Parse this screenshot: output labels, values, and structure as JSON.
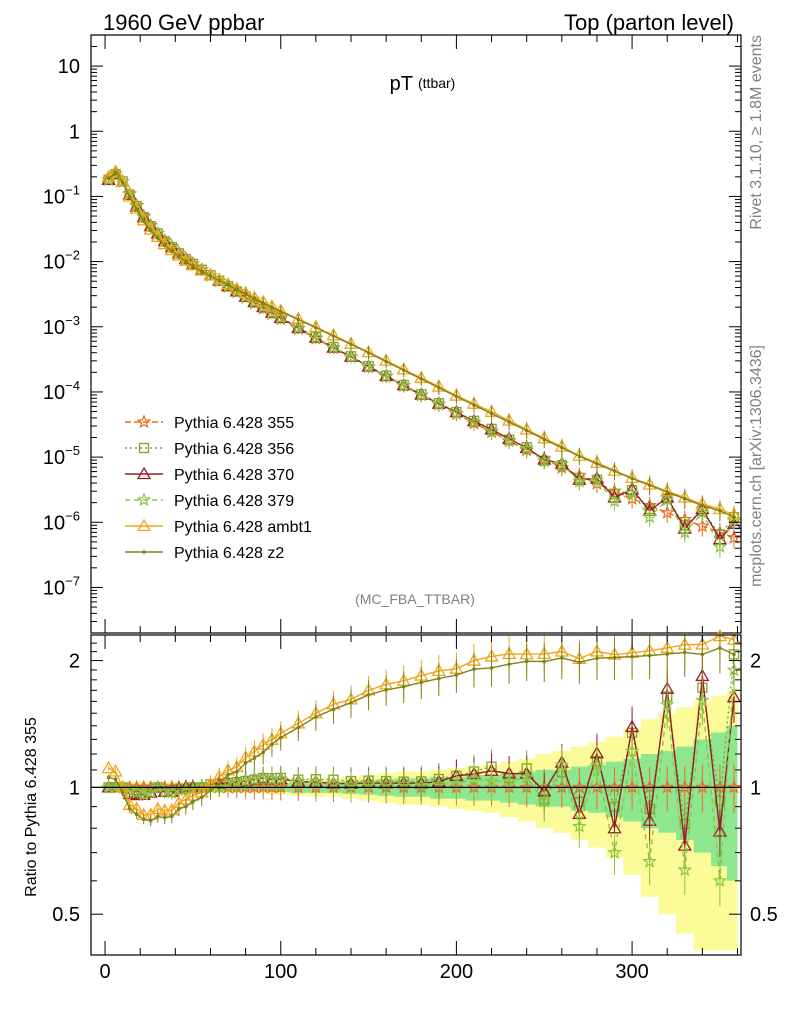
{
  "header": {
    "left": "1960 GeV ppbar",
    "right": "Top (parton level)"
  },
  "side_labels": {
    "rivet": "Rivet 3.1.10, ≥ 1.8M events",
    "mcplots": "mcplots.cern.ch [arXiv:1306.3436]"
  },
  "chart_data": {
    "type": "line",
    "title": "pT",
    "title_sub": "(ttbar)",
    "watermark": "(MC_FBA_TTBAR)",
    "xlabel": "",
    "ylabel": "",
    "xlim": [
      -8,
      362
    ],
    "ylim": [
      2e-08,
      30
    ],
    "yscale": "log",
    "x_ticks": [
      0,
      100,
      200,
      300
    ],
    "y_ticks": [
      {
        "v": 10,
        "b": "10",
        "e": ""
      },
      {
        "v": 1,
        "b": "1",
        "e": ""
      },
      {
        "v": 0.1,
        "b": "10",
        "e": "−1"
      },
      {
        "v": 0.01,
        "b": "10",
        "e": "−2"
      },
      {
        "v": 0.001,
        "b": "10",
        "e": "−3"
      },
      {
        "v": 0.0001,
        "b": "10",
        "e": "−4"
      },
      {
        "v": 1e-05,
        "b": "10",
        "e": "−5"
      },
      {
        "v": 1e-06,
        "b": "10",
        "e": "−6"
      },
      {
        "v": 1e-07,
        "b": "10",
        "e": "−7"
      }
    ],
    "x": [
      2,
      6,
      10,
      14,
      18,
      22,
      26,
      30,
      34,
      38,
      42,
      46,
      50,
      55,
      60,
      65,
      70,
      75,
      80,
      85,
      90,
      95,
      100,
      110,
      120,
      130,
      140,
      150,
      160,
      170,
      180,
      190,
      200,
      210,
      220,
      230,
      240,
      250,
      260,
      270,
      280,
      290,
      300,
      310,
      320,
      330,
      340,
      350,
      358
    ],
    "series": [
      {
        "name": "Pythia 6.428 355",
        "color": "#ee6a1f",
        "dash": "6,3",
        "marker": "star",
        "values": [
          0.18,
          0.22,
          0.17,
          0.11,
          0.073,
          0.05,
          0.036,
          0.027,
          0.021,
          0.017,
          0.0135,
          0.011,
          0.0092,
          0.0075,
          0.0061,
          0.005,
          0.0041,
          0.0034,
          0.0028,
          0.0023,
          0.0019,
          0.00158,
          0.00131,
          0.00093,
          0.00066,
          0.00047,
          0.00034,
          0.00024,
          0.000172,
          0.000124,
          8.9e-05,
          6.4e-05,
          4.6e-05,
          3.3e-05,
          2.42e-05,
          1.76e-05,
          1.28e-05,
          9.4e-06,
          6.9e-06,
          5.2e-06,
          3.9e-06,
          3e-06,
          2.3e-06,
          1.8e-06,
          1.4e-06,
          1.1e-06,
          8.7e-07,
          7e-07,
          5.8e-07
        ]
      },
      {
        "name": "Pythia 6.428 356",
        "color": "#7fa52a",
        "dash": "2,3",
        "marker": "square",
        "values": [
          0.18,
          0.22,
          0.17,
          0.107,
          0.071,
          0.048,
          0.035,
          0.027,
          0.0205,
          0.0166,
          0.0134,
          0.0109,
          0.0092,
          0.0075,
          0.0062,
          0.0051,
          0.0042,
          0.0035,
          0.0029,
          0.0024,
          0.002,
          0.00166,
          0.00138,
          0.00097,
          0.00069,
          0.00049,
          0.000352,
          0.000249,
          0.000178,
          0.000128,
          9.2e-05,
          6.7e-05,
          4.9e-05,
          3.6e-05,
          2.71e-05,
          1.85e-05,
          1.42e-05,
          8.8e-06,
          7.5e-06,
          4.8e-06,
          4.5e-06,
          2.7e-06,
          3.1e-06,
          1.6e-06,
          2.3e-06,
          9e-07,
          1.5e-06,
          6.5e-07,
          1.2e-06
        ]
      },
      {
        "name": "Pythia 6.428 370",
        "color": "#9a1a2a",
        "dash": "",
        "marker": "triangle",
        "values": [
          0.18,
          0.22,
          0.17,
          0.106,
          0.07,
          0.048,
          0.035,
          0.027,
          0.0205,
          0.0166,
          0.0134,
          0.011,
          0.0092,
          0.0075,
          0.0062,
          0.0051,
          0.0042,
          0.0035,
          0.0029,
          0.0024,
          0.002,
          0.00165,
          0.00137,
          0.00096,
          0.00068,
          0.00048,
          0.000347,
          0.000246,
          0.000176,
          0.000127,
          9.1e-05,
          6.6e-05,
          4.9e-05,
          3.55e-05,
          2.65e-05,
          1.9e-05,
          1.38e-05,
          9.2e-06,
          7.9e-06,
          4.5e-06,
          4.7e-06,
          2.4e-06,
          3.2e-06,
          1.5e-06,
          2.4e-06,
          8e-07,
          1.6e-06,
          5.5e-07,
          9.5e-07
        ]
      },
      {
        "name": "Pythia 6.428 379",
        "color": "#8cc63f",
        "dash": "5,4",
        "marker": "star",
        "values": [
          0.18,
          0.22,
          0.17,
          0.108,
          0.071,
          0.048,
          0.035,
          0.027,
          0.0205,
          0.0165,
          0.0133,
          0.0109,
          0.0091,
          0.0075,
          0.0061,
          0.005,
          0.0042,
          0.0035,
          0.0029,
          0.0024,
          0.002,
          0.00165,
          0.00137,
          0.00096,
          0.00068,
          0.00048,
          0.000344,
          0.000244,
          0.000175,
          0.000126,
          9e-05,
          6.5e-05,
          4.7e-05,
          3.45e-05,
          2.5e-05,
          1.82e-05,
          1.35e-05,
          8.7e-06,
          7.8e-06,
          4.2e-06,
          4.4e-06,
          2.1e-06,
          2.8e-06,
          1.2e-06,
          2.2e-06,
          7e-07,
          1.4e-06,
          4.2e-07,
          1.1e-06
        ]
      },
      {
        "name": "Pythia 6.428 ambt1",
        "color": "#f2a51a",
        "dash": "",
        "marker": "triangle",
        "values": [
          0.2,
          0.24,
          0.17,
          0.1,
          0.065,
          0.043,
          0.031,
          0.024,
          0.0185,
          0.015,
          0.0124,
          0.0103,
          0.0088,
          0.0073,
          0.0062,
          0.0053,
          0.0045,
          0.0038,
          0.0033,
          0.0028,
          0.0024,
          0.00205,
          0.00176,
          0.00132,
          0.00099,
          0.00074,
          0.00055,
          0.000408,
          0.000302,
          0.000222,
          0.000164,
          0.000121,
          8.8e-05,
          6.6e-05,
          4.95e-05,
          3.65e-05,
          2.65e-05,
          1.95e-05,
          1.45e-05,
          1.05e-05,
          8.2e-06,
          6.2e-06,
          4.8e-06,
          3.8e-06,
          3e-06,
          2.4e-06,
          1.9e-06,
          1.6e-06,
          1.3e-06
        ]
      },
      {
        "name": "Pythia 6.428 z2",
        "color": "#7d8414",
        "dash": "",
        "marker": "dot",
        "values": [
          0.19,
          0.23,
          0.165,
          0.098,
          0.063,
          0.042,
          0.03,
          0.023,
          0.0178,
          0.0145,
          0.012,
          0.0099,
          0.0085,
          0.0071,
          0.006,
          0.0051,
          0.0044,
          0.0037,
          0.0032,
          0.0027,
          0.0023,
          0.002,
          0.00172,
          0.00129,
          0.00097,
          0.00072,
          0.00054,
          0.000398,
          0.000293,
          0.000215,
          0.000158,
          0.000116,
          8.5e-05,
          6.3e-05,
          4.65e-05,
          3.45e-05,
          2.55e-05,
          1.87e-05,
          1.4e-05,
          1.03e-05,
          7.9e-06,
          6.1e-06,
          4.7e-06,
          3.7e-06,
          2.9e-06,
          2.3e-06,
          1.8e-06,
          1.5e-06,
          1.2e-06
        ]
      }
    ],
    "ratio": {
      "ylabel": "Ratio to Pythia 6.428 355",
      "ylim": [
        0.4,
        2.3
      ],
      "yscale": "log",
      "ticks": [
        {
          "v": 0.5,
          "label": "0.5"
        },
        {
          "v": 1,
          "label": "1"
        },
        {
          "v": 2,
          "label": "2"
        }
      ],
      "band_green": [
        0.02,
        0.02,
        0.02,
        0.02,
        0.02,
        0.02,
        0.02,
        0.02,
        0.02,
        0.02,
        0.02,
        0.02,
        0.02,
        0.02,
        0.02,
        0.02,
        0.02,
        0.02,
        0.02,
        0.02,
        0.02,
        0.025,
        0.025,
        0.03,
        0.03,
        0.03,
        0.035,
        0.04,
        0.045,
        0.05,
        0.05,
        0.06,
        0.06,
        0.07,
        0.07,
        0.08,
        0.09,
        0.1,
        0.1,
        0.12,
        0.13,
        0.15,
        0.17,
        0.2,
        0.22,
        0.25,
        0.3,
        0.35,
        0.4
      ],
      "band_yellow": [
        0.03,
        0.03,
        0.03,
        0.03,
        0.03,
        0.03,
        0.03,
        0.03,
        0.03,
        0.03,
        0.03,
        0.03,
        0.03,
        0.03,
        0.03,
        0.03,
        0.03,
        0.03,
        0.03,
        0.03,
        0.03,
        0.04,
        0.04,
        0.045,
        0.05,
        0.05,
        0.06,
        0.07,
        0.08,
        0.09,
        0.09,
        0.1,
        0.11,
        0.12,
        0.13,
        0.15,
        0.17,
        0.2,
        0.22,
        0.25,
        0.28,
        0.32,
        0.38,
        0.45,
        0.5,
        0.55,
        0.6,
        0.65,
        0.7
      ]
    }
  }
}
